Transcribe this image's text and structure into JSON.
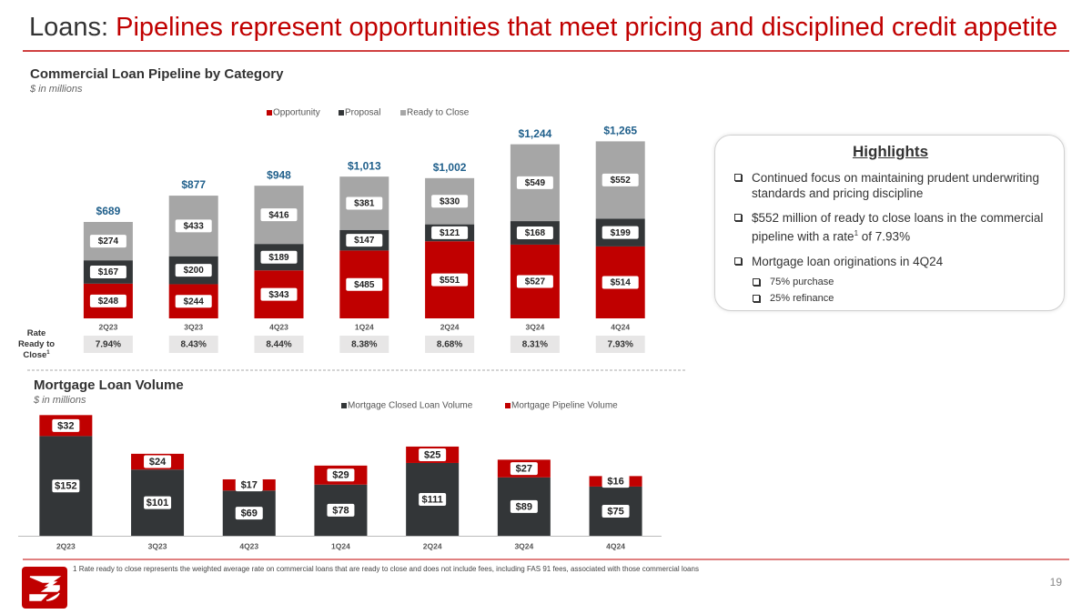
{
  "slide": {
    "title_prefix": "Loans:",
    "title": "Pipelines represent opportunities that meet pricing and disciplined credit appetite",
    "highlights": {
      "title": "Highlights",
      "bullets": [
        {
          "text": "Continued focus on maintaining prudent underwriting standards and pricing discipline"
        },
        {
          "text": "$552 million of ready to close loans in the commercial pipeline with a rate",
          "sup": "1",
          "after": " of 7.93%"
        },
        {
          "text": "Mortgage loan originations in 4Q24",
          "sub": [
            "75% purchase",
            "25% refinance"
          ]
        }
      ]
    },
    "footnote_mark": "1",
    "footnote": "Rate ready to close represents the weighted average rate on commercial loans that are ready to close and does not include fees, including FAS 91 fees, associated with those commercial loans",
    "page_number": "19"
  },
  "chart_data": [
    {
      "type": "stacked_bar",
      "title": "Commercial Loan Pipeline by Category",
      "subtitle": "$ in millions",
      "categories": [
        "2Q23",
        "3Q23",
        "4Q23",
        "1Q24",
        "2Q24",
        "3Q24",
        "4Q24"
      ],
      "ylim": [
        0,
        1300
      ],
      "series": [
        {
          "name": "Opportunity",
          "color": "#c00000",
          "values": [
            248,
            244,
            343,
            485,
            551,
            527,
            514
          ],
          "value_labels": [
            "$248",
            "$244",
            "$343",
            "$485",
            "$551",
            "$527",
            "$514"
          ]
        },
        {
          "name": "Proposal",
          "color": "#333638",
          "values": [
            167,
            200,
            189,
            147,
            121,
            168,
            199
          ],
          "value_labels": [
            "$167",
            "$200",
            "$189",
            "$147",
            "$121",
            "$168",
            "$199"
          ]
        },
        {
          "name": "Ready to Close",
          "color": "#a6a6a6",
          "values": [
            274,
            433,
            416,
            381,
            330,
            549,
            552
          ],
          "value_labels": [
            "$274",
            "$433",
            "$416",
            "$381",
            "$330",
            "$549",
            "$552"
          ]
        }
      ],
      "totals": [
        689,
        877,
        948,
        1013,
        1002,
        1244,
        1265
      ],
      "total_labels": [
        "$689",
        "$877",
        "$948",
        "$1,013",
        "$1,002",
        "$1,244",
        "$1,265"
      ],
      "rate_label": "Rate Ready to Close",
      "rate_label_note": "1",
      "rates": [
        7.94,
        8.43,
        8.44,
        8.38,
        8.68,
        8.31,
        7.93
      ],
      "rate_labels": [
        "7.94%",
        "8.43%",
        "8.44%",
        "8.38%",
        "8.68%",
        "8.31%",
        "7.93%"
      ]
    },
    {
      "type": "stacked_bar",
      "title": "Mortgage Loan Volume",
      "subtitle": "$ in millions",
      "categories": [
        "2Q23",
        "3Q23",
        "4Q23",
        "1Q24",
        "2Q24",
        "3Q24",
        "4Q24"
      ],
      "ylim": [
        0,
        190
      ],
      "series": [
        {
          "name": "Mortgage Closed Loan Volume",
          "color": "#333638",
          "values": [
            152,
            101,
            69,
            78,
            111,
            89,
            75
          ],
          "value_labels": [
            "$152",
            "$101",
            "$69",
            "$78",
            "$111",
            "$89",
            "$75"
          ]
        },
        {
          "name": "Mortgage Pipeline Volume",
          "color": "#c00000",
          "values": [
            32,
            24,
            17,
            29,
            25,
            27,
            16
          ],
          "value_labels": [
            "$32",
            "$24",
            "$17",
            "$29",
            "$25",
            "$27",
            "$16"
          ]
        }
      ]
    }
  ]
}
